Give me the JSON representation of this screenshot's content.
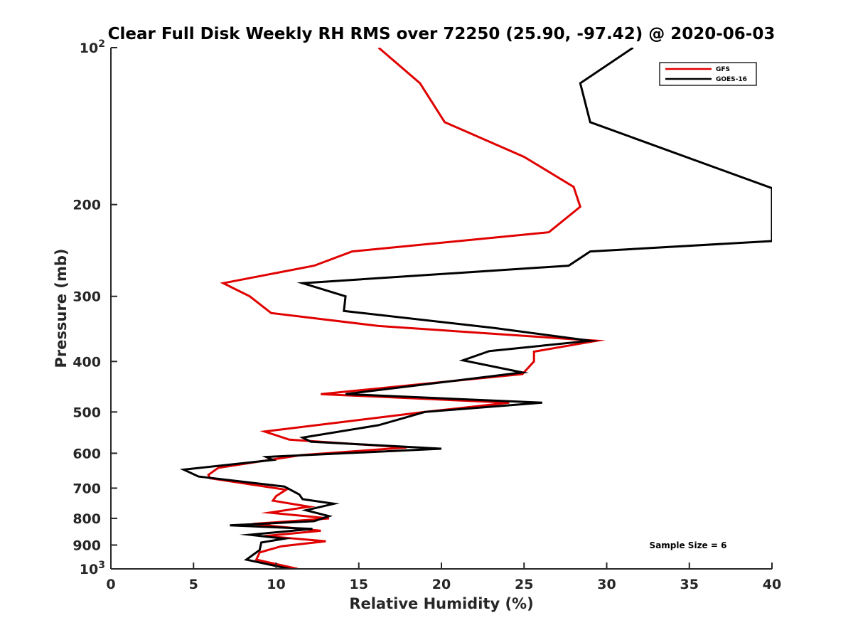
{
  "chart_data": {
    "type": "line",
    "title": "Clear Full Disk Weekly RH RMS over 72250 (25.90, -97.42) @ 2020-06-03",
    "xlabel": "Relative Humidity (%)",
    "ylabel": "Pressure (mb)",
    "xlim": [
      0,
      40
    ],
    "ylim": [
      100,
      1000
    ],
    "y_scale": "log",
    "y_reversed": true,
    "grid": false,
    "legend_position": "top-right",
    "x_ticks": [
      "0",
      "5",
      "10",
      "15",
      "20",
      "25",
      "30",
      "35",
      "40"
    ],
    "x_tick_values": [
      0,
      5,
      10,
      15,
      20,
      25,
      30,
      35,
      40
    ],
    "y_ticks": [
      {
        "value": 100,
        "base": "10",
        "exp": "2"
      },
      {
        "value": 200,
        "label": "200"
      },
      {
        "value": 300,
        "label": "300"
      },
      {
        "value": 400,
        "label": "400"
      },
      {
        "value": 500,
        "label": "500"
      },
      {
        "value": 600,
        "label": "600"
      },
      {
        "value": 700,
        "label": "700"
      },
      {
        "value": 800,
        "label": "800"
      },
      {
        "value": 900,
        "label": "900"
      },
      {
        "value": 1000,
        "base": "10",
        "exp": "3"
      }
    ],
    "annotation": "Sample Size = 6",
    "series": [
      {
        "name": "GFS",
        "color": "#e00000",
        "points": [
          [
            16.2,
            100
          ],
          [
            18.7,
            117
          ],
          [
            20.2,
            139
          ],
          [
            25.0,
            162
          ],
          [
            28.0,
            185
          ],
          [
            28.4,
            202
          ],
          [
            26.5,
            226
          ],
          [
            14.6,
            246
          ],
          [
            12.3,
            262
          ],
          [
            6.8,
            283
          ],
          [
            8.4,
            300
          ],
          [
            9.7,
            323
          ],
          [
            16.2,
            342
          ],
          [
            29.4,
            365
          ],
          [
            25.6,
            383
          ],
          [
            25.6,
            400
          ],
          [
            24.9,
            423
          ],
          [
            12.7,
            462
          ],
          [
            24.1,
            480
          ],
          [
            19.0,
            500
          ],
          [
            9.3,
            545
          ],
          [
            10.8,
            565
          ],
          [
            17.9,
            585
          ],
          [
            11.5,
            605
          ],
          [
            6.5,
            640
          ],
          [
            5.9,
            660
          ],
          [
            6.0,
            670
          ],
          [
            10.6,
            705
          ],
          [
            10.0,
            725
          ],
          [
            9.8,
            740
          ],
          [
            12.0,
            760
          ],
          [
            9.6,
            780
          ],
          [
            13.2,
            800
          ],
          [
            8.6,
            820
          ],
          [
            12.7,
            845
          ],
          [
            9.3,
            865
          ],
          [
            13.0,
            885
          ],
          [
            10.3,
            905
          ],
          [
            9.0,
            930
          ],
          [
            8.8,
            960
          ],
          [
            11.3,
            1000
          ]
        ]
      },
      {
        "name": "GOES-16",
        "color": "#000000",
        "points": [
          [
            31.6,
            100
          ],
          [
            28.4,
            117
          ],
          [
            29.0,
            139
          ],
          [
            40.0,
            186
          ],
          [
            40.0,
            235
          ],
          [
            29.0,
            246
          ],
          [
            27.7,
            262
          ],
          [
            11.6,
            283
          ],
          [
            14.2,
            300
          ],
          [
            14.1,
            320
          ],
          [
            23.2,
            345
          ],
          [
            29.0,
            365
          ],
          [
            22.9,
            382
          ],
          [
            21.3,
            398
          ],
          [
            24.9,
            420
          ],
          [
            14.2,
            462
          ],
          [
            26.1,
            480
          ],
          [
            19.0,
            500
          ],
          [
            16.2,
            530
          ],
          [
            11.6,
            560
          ],
          [
            12.1,
            570
          ],
          [
            20.0,
            588
          ],
          [
            9.4,
            610
          ],
          [
            9.8,
            618
          ],
          [
            4.4,
            645
          ],
          [
            5.3,
            665
          ],
          [
            10.5,
            695
          ],
          [
            11.4,
            720
          ],
          [
            11.6,
            735
          ],
          [
            13.5,
            750
          ],
          [
            11.8,
            772
          ],
          [
            13.2,
            792
          ],
          [
            12.3,
            810
          ],
          [
            7.2,
            825
          ],
          [
            12.2,
            838
          ],
          [
            8.4,
            860
          ],
          [
            10.5,
            875
          ],
          [
            9.1,
            890
          ],
          [
            9.0,
            920
          ],
          [
            8.2,
            960
          ],
          [
            10.8,
            1000
          ]
        ]
      }
    ]
  }
}
